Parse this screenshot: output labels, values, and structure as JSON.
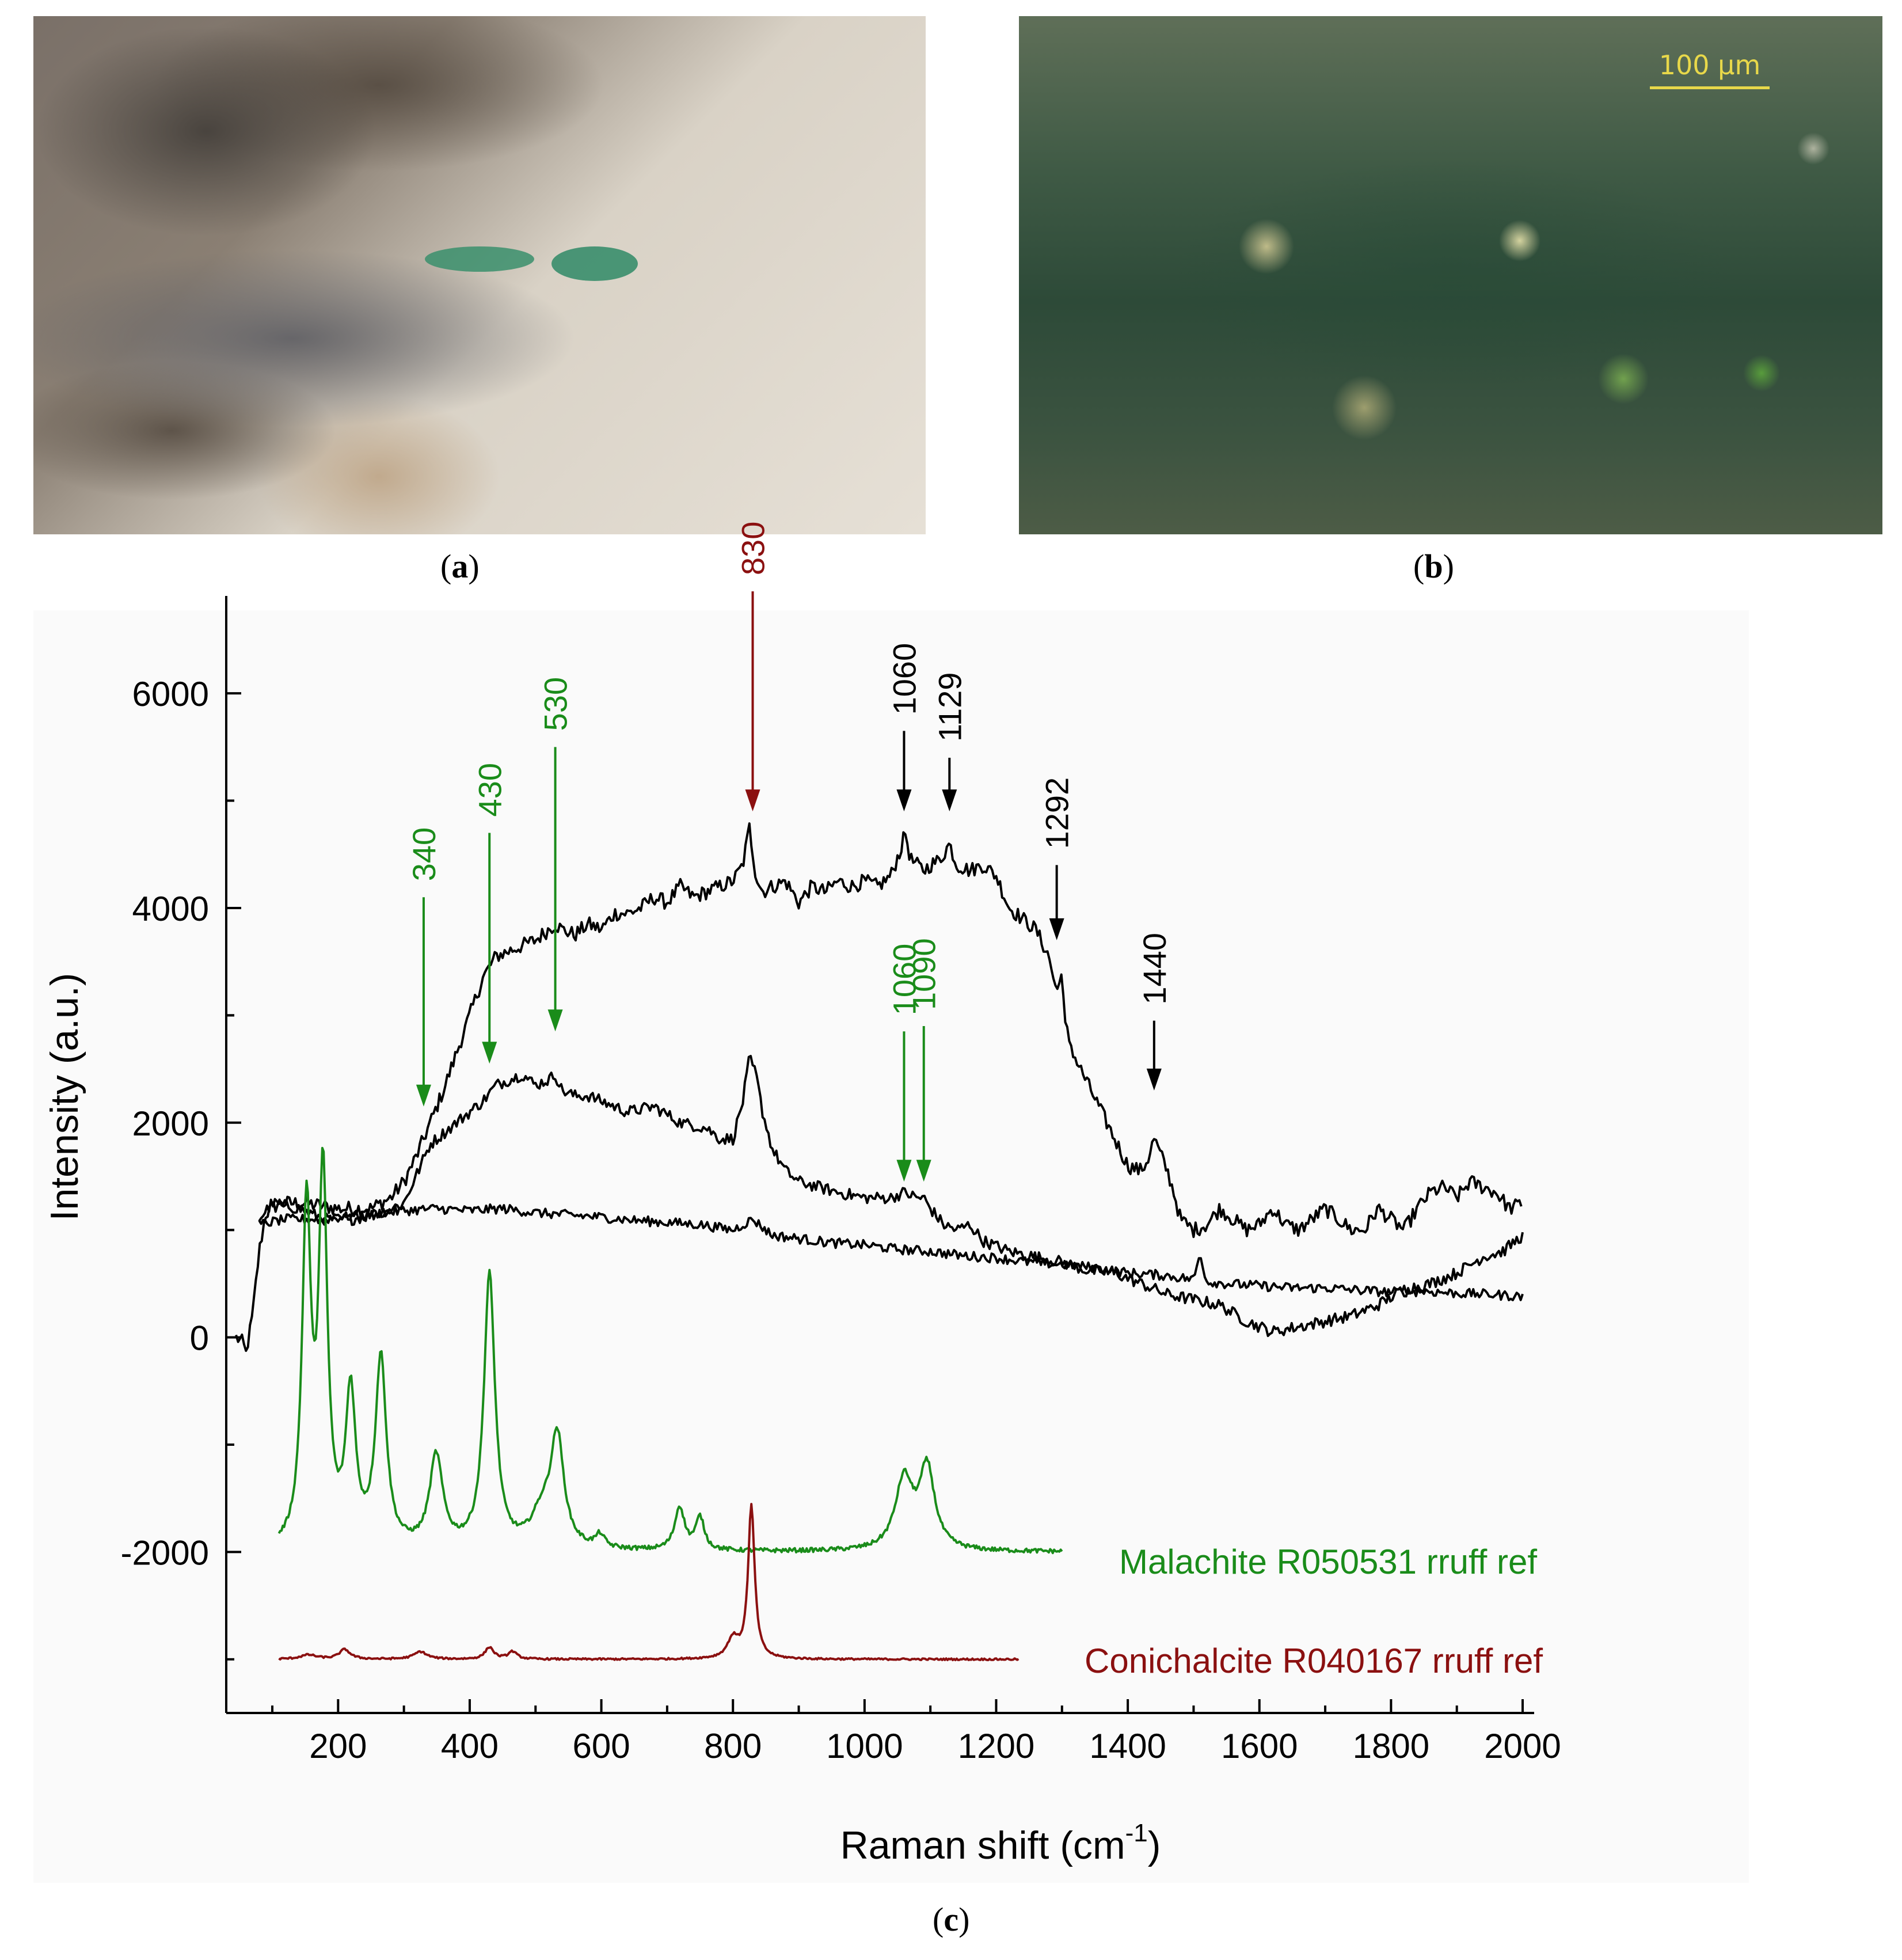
{
  "panels": {
    "a": {
      "caption_prefix": "(",
      "letter": "a",
      "caption_suffix": ")"
    },
    "b": {
      "caption_prefix": "(",
      "letter": "b",
      "caption_suffix": ")",
      "scale_bar": "100 μm"
    },
    "c": {
      "caption_prefix": "(",
      "letter": "c",
      "caption_suffix": ")"
    }
  },
  "chart_data": {
    "type": "line",
    "xlabel": "Raman shift (cm",
    "xlabel_sup": "-1",
    "xlabel_end": ")",
    "ylabel": "Intensity (a.u.)",
    "xlim": [
      30,
      2000
    ],
    "ylim": [
      -3500,
      6800
    ],
    "x_ticks": [
      200,
      400,
      600,
      800,
      1000,
      1200,
      1400,
      1600,
      1800,
      2000
    ],
    "y_ticks": [
      -2000,
      0,
      2000,
      4000,
      6000
    ],
    "x_tick_labels": [
      "200",
      "400",
      "600",
      "800",
      "1000",
      "1200",
      "1400",
      "1600",
      "1800",
      "2000"
    ],
    "y_tick_labels": [
      "-2000",
      "0",
      "2000",
      "4000",
      "6000"
    ],
    "colors": {
      "sample": "#000000",
      "malachite": "#1a8c1a",
      "conichalcite": "#8b1010"
    },
    "series": [
      {
        "key": "sample_upper",
        "color": "#000000",
        "noise": 70,
        "x": [
          45,
          55,
          60,
          70,
          80,
          90,
          110,
          150,
          200,
          250,
          280,
          300,
          320,
          340,
          360,
          380,
          400,
          420,
          440,
          460,
          480,
          500,
          520,
          530,
          540,
          560,
          580,
          600,
          620,
          640,
          660,
          680,
          700,
          720,
          740,
          760,
          780,
          800,
          815,
          825,
          835,
          845,
          860,
          880,
          900,
          920,
          940,
          960,
          980,
          1000,
          1020,
          1040,
          1055,
          1062,
          1070,
          1080,
          1090,
          1100,
          1115,
          1129,
          1140,
          1160,
          1180,
          1200,
          1220,
          1240,
          1260,
          1280,
          1292,
          1298,
          1305,
          1320,
          1340,
          1360,
          1380,
          1400,
          1420,
          1430,
          1440,
          1450,
          1460,
          1470,
          1480,
          1500,
          1520,
          1540,
          1560,
          1580,
          1600,
          1620,
          1640,
          1660,
          1680,
          1700,
          1720,
          1740,
          1760,
          1780,
          1800,
          1820,
          1840,
          1860,
          1880,
          1900,
          1920,
          1940,
          1960,
          1980,
          2000
        ],
        "y": [
          0,
          -50,
          -150,
          200,
          800,
          1150,
          1250,
          1250,
          1200,
          1200,
          1300,
          1450,
          1700,
          2000,
          2300,
          2650,
          3000,
          3350,
          3550,
          3600,
          3650,
          3700,
          3800,
          3850,
          3800,
          3750,
          3850,
          3800,
          3950,
          3950,
          4000,
          4100,
          4050,
          4200,
          4100,
          4150,
          4200,
          4250,
          4400,
          4750,
          4300,
          4150,
          4200,
          4250,
          4050,
          4200,
          4150,
          4250,
          4200,
          4250,
          4200,
          4300,
          4550,
          4700,
          4450,
          4400,
          4350,
          4400,
          4450,
          4600,
          4400,
          4350,
          4400,
          4300,
          4000,
          3900,
          3800,
          3550,
          3200,
          3450,
          2900,
          2600,
          2350,
          2100,
          1850,
          1600,
          1550,
          1650,
          1850,
          1700,
          1550,
          1350,
          1100,
          1000,
          1050,
          1200,
          1100,
          1000,
          1050,
          1200,
          1050,
          1000,
          1100,
          1200,
          1100,
          1000,
          1000,
          1200,
          1100,
          1000,
          1200,
          1350,
          1400,
          1300,
          1450,
          1400,
          1350,
          1200,
          1250
        ]
      },
      {
        "key": "sample_middle",
        "color": "#000000",
        "noise": 55,
        "x": [
          80,
          100,
          140,
          180,
          220,
          260,
          300,
          340,
          380,
          420,
          440,
          460,
          480,
          500,
          520,
          530,
          540,
          560,
          580,
          600,
          640,
          680,
          720,
          760,
          780,
          800,
          815,
          825,
          835,
          845,
          860,
          880,
          900,
          930,
          960,
          1000,
          1020,
          1040,
          1060,
          1080,
          1090,
          1100,
          1120,
          1140,
          1160,
          1180,
          1220,
          1260,
          1300,
          1340,
          1380,
          1420,
          1460,
          1500,
          1540,
          1580,
          1620,
          1660,
          1700,
          1740,
          1780,
          1820,
          1860,
          1900,
          1940,
          1970,
          2000
        ],
        "y": [
          1100,
          1250,
          1200,
          1100,
          1100,
          1150,
          1250,
          1800,
          2000,
          2200,
          2350,
          2400,
          2450,
          2350,
          2400,
          2450,
          2300,
          2250,
          2250,
          2200,
          2100,
          2150,
          2000,
          1950,
          1850,
          1850,
          2200,
          2600,
          2450,
          2100,
          1750,
          1550,
          1450,
          1400,
          1350,
          1300,
          1300,
          1300,
          1350,
          1300,
          1300,
          1200,
          1050,
          1000,
          1050,
          900,
          800,
          750,
          700,
          620,
          600,
          500,
          400,
          350,
          300,
          150,
          50,
          100,
          150,
          200,
          300,
          450,
          500,
          600,
          750,
          800,
          950
        ]
      },
      {
        "key": "sample_lower",
        "color": "#000000",
        "noise": 45,
        "x": [
          80,
          120,
          180,
          250,
          300,
          350,
          400,
          450,
          500,
          550,
          600,
          650,
          700,
          750,
          800,
          830,
          860,
          900,
          950,
          1000,
          1050,
          1100,
          1150,
          1200,
          1250,
          1300,
          1350,
          1400,
          1450,
          1500,
          1510,
          1520,
          1550,
          1600,
          1650,
          1700,
          1750,
          1800,
          1850,
          1900,
          1950,
          2000
        ],
        "y": [
          1050,
          1100,
          1100,
          1150,
          1180,
          1200,
          1180,
          1200,
          1160,
          1140,
          1120,
          1090,
          1070,
          1050,
          1000,
          1100,
          950,
          920,
          880,
          860,
          820,
          800,
          760,
          740,
          700,
          680,
          650,
          600,
          580,
          540,
          780,
          520,
          500,
          480,
          460,
          460,
          440,
          420,
          430,
          410,
          400,
          380
        ]
      },
      {
        "key": "malachite",
        "name": "Malachite R050531 rruff ref",
        "color": "#1a8c1a",
        "noise": 20,
        "baseline": -2000,
        "xmin": 110,
        "xmax": 1300,
        "peaks": [
          [
            152,
            3100,
            8
          ],
          [
            177,
            3400,
            8
          ],
          [
            219,
            1400,
            9
          ],
          [
            265,
            1750,
            10
          ],
          [
            349,
            850,
            12
          ],
          [
            430,
            2550,
            10
          ],
          [
            510,
            300,
            20
          ],
          [
            533,
            1000,
            12
          ],
          [
            598,
            120,
            8
          ],
          [
            719,
            400,
            9
          ],
          [
            750,
            300,
            8
          ],
          [
            1060,
            650,
            16
          ],
          [
            1095,
            750,
            14
          ]
        ]
      },
      {
        "key": "conichalcite",
        "name": "Conichalcite R040167 rruff ref",
        "color": "#8b1010",
        "noise": 8,
        "baseline": -3000,
        "xmin": 110,
        "xmax": 1235,
        "peaks": [
          [
            155,
            40,
            15
          ],
          [
            210,
            90,
            10
          ],
          [
            325,
            70,
            12
          ],
          [
            430,
            110,
            8
          ],
          [
            465,
            70,
            8
          ],
          [
            800,
            180,
            10
          ],
          [
            828,
            1420,
            6
          ]
        ]
      }
    ],
    "annotations": [
      {
        "label": "340",
        "x": 330,
        "color": "#1a8c1a",
        "tip": 2150,
        "start_y": 4100
      },
      {
        "label": "430",
        "x": 430,
        "color": "#1a8c1a",
        "tip": 2550,
        "start_y": 4700
      },
      {
        "label": "530",
        "x": 530,
        "color": "#1a8c1a",
        "tip": 2850,
        "start_y": 5500
      },
      {
        "label": "830",
        "x": 830,
        "color": "#8b1010",
        "tip": 4900,
        "start_y": 6950
      },
      {
        "label": "1060",
        "x": 1060,
        "color": "#000000",
        "tip": 4900,
        "start_y": 5650
      },
      {
        "label": "1129",
        "x": 1129,
        "color": "#000000",
        "tip": 4900,
        "start_y": 5400
      },
      {
        "label": "1292",
        "x": 1292,
        "color": "#000000",
        "tip": 3700,
        "start_y": 4400
      },
      {
        "label": "1440",
        "x": 1440,
        "color": "#000000",
        "tip": 2300,
        "start_y": 2950
      },
      {
        "label": "1060",
        "x": 1060,
        "color": "#1a8c1a",
        "tip": 1450,
        "start_y": 2850
      },
      {
        "label": "1090",
        "x": 1090,
        "color": "#1a8c1a",
        "tip": 1450,
        "start_y": 2900
      }
    ]
  }
}
